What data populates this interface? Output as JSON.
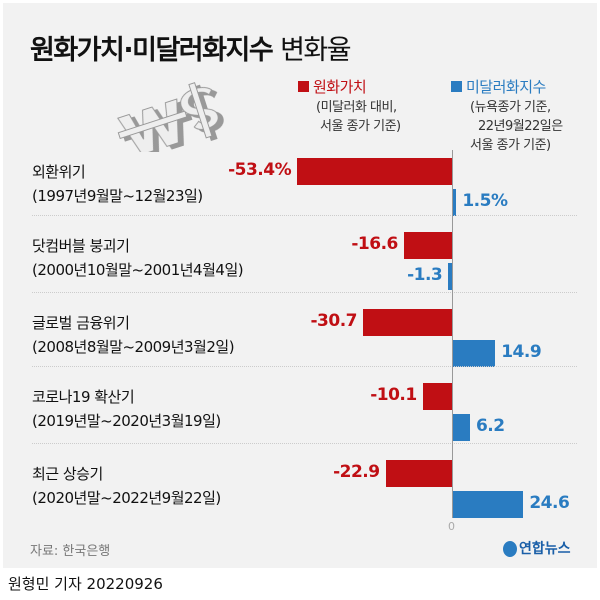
{
  "title_bold": "원화가치·미달러화지수",
  "title_light": "변화율",
  "colors": {
    "krw": "#c00f14",
    "dxy": "#2a7cc1"
  },
  "chart_data": {
    "type": "bar",
    "orientation": "horizontal",
    "categories": [
      {
        "name": "외환위기",
        "period": "(1997년9월말~12월23일)"
      },
      {
        "name": "닷컴버블 붕괴기",
        "period": "(2000년10월말~2001년4월4일)"
      },
      {
        "name": "글로벌 금융위기",
        "period": "(2008년8월말~2009년3월2일)"
      },
      {
        "name": "코로나19 확산기",
        "period": "(2019년말~2020년3월19일)"
      },
      {
        "name": "최근 상승기",
        "period": "(2020년말~2022년9월22일)"
      }
    ],
    "series": [
      {
        "name": "원화가치",
        "note1": "(미달러화 대비,",
        "note2": "서울 종가 기준)",
        "values": [
          -53.4,
          -16.6,
          -30.7,
          -10.1,
          -22.9
        ],
        "labels": [
          "-53.4%",
          "-16.6",
          "-30.7",
          "-10.1",
          "-22.9"
        ]
      },
      {
        "name": "미달러화지수",
        "note1": "(뉴욕종가 기준,",
        "note2": "22년9월22일은",
        "note3": "서울 종가 기준)",
        "values": [
          1.5,
          -1.3,
          14.9,
          6.2,
          24.6
        ],
        "labels": [
          "1.5%",
          "-1.3",
          "14.9",
          "6.2",
          "24.6"
        ]
      }
    ],
    "zero_label": "0",
    "unit": "%"
  },
  "source": "자료: 한국은행",
  "logo": "연합뉴스",
  "byline": "원형민 기자  20220926"
}
